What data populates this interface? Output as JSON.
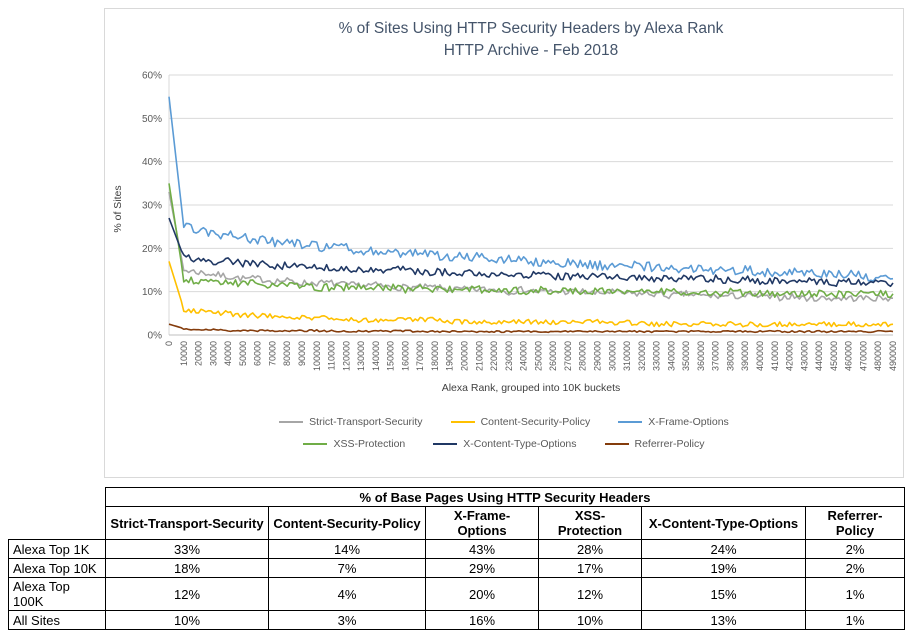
{
  "chart_data": {
    "type": "line",
    "title": "% of Sites Using HTTP Security Headers by Alexa Rank",
    "subtitle": "HTTP Archive - Feb 2018",
    "xlabel": "Alexa Rank, grouped into 10K buckets",
    "ylabel": "% of Sites",
    "ylim": [
      0,
      60
    ],
    "ytick_step": 10,
    "ytick_labels": [
      "0%",
      "10%",
      "20%",
      "30%",
      "40%",
      "50%",
      "60%"
    ],
    "grid": "horizontal",
    "legend_position": "bottom",
    "x": [
      0,
      10000,
      20000,
      30000,
      40000,
      50000,
      60000,
      70000,
      80000,
      90000,
      100000,
      110000,
      120000,
      130000,
      140000,
      150000,
      160000,
      170000,
      180000,
      190000,
      200000,
      210000,
      220000,
      230000,
      240000,
      250000,
      260000,
      270000,
      280000,
      290000,
      300000,
      310000,
      320000,
      330000,
      340000,
      350000,
      360000,
      370000,
      380000,
      390000,
      400000,
      410000,
      420000,
      430000,
      440000,
      450000,
      460000,
      470000,
      480000,
      490000
    ],
    "series": [
      {
        "name": "Strict-Transport-Security",
        "color": "#a6a6a6",
        "noise": 0.9,
        "values": [
          33,
          15,
          14.5,
          14,
          13.5,
          13,
          13,
          12.5,
          12.5,
          12,
          12,
          12,
          11.5,
          11.5,
          11.5,
          11,
          11,
          11,
          11,
          10.5,
          10.5,
          10.5,
          10.5,
          10,
          10.5,
          10,
          10,
          10,
          10,
          9.5,
          10,
          9.5,
          9.5,
          9.5,
          9,
          9.5,
          9,
          9,
          9,
          9,
          9,
          8.5,
          9,
          8.5,
          8.5,
          8.5,
          8.5,
          8.5,
          8.5,
          8.5
        ]
      },
      {
        "name": "Content-Security-Policy",
        "color": "#ffc000",
        "noise": 0.7,
        "values": [
          17,
          6,
          5.5,
          5,
          5,
          4.5,
          4.5,
          4.5,
          4,
          4,
          4,
          4,
          3.5,
          3.5,
          3.5,
          3.5,
          3.5,
          3.5,
          3.5,
          3,
          3,
          3,
          3,
          3,
          3,
          3,
          3,
          3,
          3,
          3,
          2.5,
          3,
          2.5,
          2.5,
          2.5,
          2.5,
          2.5,
          2.5,
          2.5,
          2.5,
          2.5,
          2.5,
          2.5,
          2.5,
          2.5,
          2.5,
          2.5,
          2.5,
          2.5,
          2.5
        ]
      },
      {
        "name": "X-Frame-Options",
        "color": "#5b9bd5",
        "noise": 1.3,
        "values": [
          55,
          25,
          24,
          23.5,
          23,
          22.5,
          22,
          21.5,
          21,
          21,
          20.5,
          20,
          20,
          19.5,
          19.5,
          19,
          19,
          18.5,
          18.5,
          18,
          18,
          18,
          17.5,
          17.5,
          17,
          17,
          17,
          16.5,
          16.5,
          16,
          16,
          16,
          16,
          15.5,
          15.5,
          15.5,
          15,
          15,
          15,
          15,
          14.5,
          14.5,
          14.5,
          14,
          14,
          14,
          14,
          13.5,
          13.5,
          13
        ]
      },
      {
        "name": "XSS-Protection",
        "color": "#70ad47",
        "noise": 1.0,
        "values": [
          35,
          13,
          12.5,
          12.5,
          12,
          12,
          12,
          11.5,
          11.5,
          11.5,
          11,
          11,
          11,
          11,
          11,
          11,
          10.5,
          11,
          10.5,
          10.5,
          10.5,
          10.5,
          10.5,
          10.5,
          10,
          10.5,
          10,
          10,
          10,
          10,
          10,
          10,
          10,
          10,
          10,
          10,
          10,
          9.5,
          10,
          9.5,
          9.5,
          9.5,
          9.5,
          9.5,
          9.5,
          9.5,
          9.5,
          9.5,
          9.5,
          9.5
        ]
      },
      {
        "name": "X-Content-Type-Options",
        "color": "#203864",
        "noise": 1.0,
        "values": [
          27,
          18,
          17.5,
          17,
          17,
          16.5,
          16.5,
          16,
          16,
          16,
          15.5,
          15.5,
          15.5,
          15,
          15,
          15,
          15,
          14.5,
          14.5,
          14.5,
          14.5,
          14,
          14,
          14,
          14,
          14,
          13.5,
          13.5,
          13.5,
          13.5,
          13.5,
          13,
          13,
          13,
          13,
          13,
          13,
          13,
          12.5,
          13,
          12.5,
          12.5,
          12.5,
          12.5,
          12.5,
          12,
          12.5,
          12,
          12,
          12
        ]
      },
      {
        "name": "Referrer-Policy",
        "color": "#843c0c",
        "noise": 0.25,
        "values": [
          2.5,
          1.5,
          1.2,
          1.2,
          1,
          1,
          1,
          1,
          1,
          1,
          1,
          0.9,
          0.9,
          0.9,
          0.9,
          0.9,
          0.9,
          0.8,
          0.8,
          0.8,
          0.8,
          0.8,
          0.8,
          0.8,
          0.8,
          0.8,
          0.8,
          0.8,
          0.8,
          0.8,
          0.8,
          0.8,
          0.8,
          0.8,
          0.8,
          0.8,
          0.8,
          0.8,
          0.8,
          0.8,
          0.8,
          0.8,
          0.8,
          0.8,
          0.8,
          0.8,
          0.8,
          0.8,
          0.8,
          0.8
        ]
      }
    ],
    "legend_rows": [
      [
        "Strict-Transport-Security",
        "Content-Security-Policy",
        "X-Frame-Options"
      ],
      [
        "XSS-Protection",
        "X-Content-Type-Options",
        "Referrer-Policy"
      ]
    ]
  },
  "table": {
    "title": "% of Base Pages Using HTTP Security Headers",
    "columns": [
      "Strict-Transport-Security",
      "Content-Security-Policy",
      "X-Frame-Options",
      "XSS-Protection",
      "X-Content-Type-Options",
      "Referrer-Policy"
    ],
    "rows": [
      {
        "label": "Alexa Top 1K",
        "values": [
          "33%",
          "14%",
          "43%",
          "28%",
          "24%",
          "2%"
        ]
      },
      {
        "label": "Alexa Top 10K",
        "values": [
          "18%",
          "7%",
          "29%",
          "17%",
          "19%",
          "2%"
        ]
      },
      {
        "label": "Alexa Top 100K",
        "values": [
          "12%",
          "4%",
          "20%",
          "12%",
          "15%",
          "1%"
        ]
      },
      {
        "label": "All Sites",
        "values": [
          "10%",
          "3%",
          "16%",
          "10%",
          "13%",
          "1%"
        ]
      }
    ]
  }
}
